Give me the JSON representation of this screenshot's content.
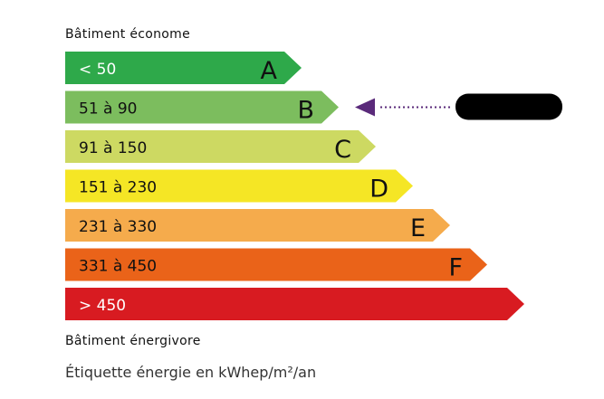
{
  "top_label": "Bâtiment économe",
  "bottom_label": "Bâtiment énergivore",
  "footer": "Étiquette énergie en kWhep/m²/an",
  "classes": [
    {
      "range": "< 50",
      "letter": "A",
      "color": "#2ea94a",
      "text_color": "#ffffff"
    },
    {
      "range": "51 à 90",
      "letter": "B",
      "color": "#7cbd5e",
      "text_color": "#111111"
    },
    {
      "range": "91 à 150",
      "letter": "C",
      "color": "#cdd962",
      "text_color": "#111111"
    },
    {
      "range": "151 à 230",
      "letter": "D",
      "color": "#f5e625",
      "text_color": "#111111"
    },
    {
      "range": "231 à 330",
      "letter": "E",
      "color": "#f5ab4c",
      "text_color": "#111111"
    },
    {
      "range": "331 à 450",
      "letter": "F",
      "color": "#ea6319",
      "text_color": "#111111"
    },
    {
      "range": "> 450",
      "letter": "",
      "color": "#d81b21",
      "text_color": "#ffffff"
    }
  ],
  "indicator": {
    "class": "B",
    "color": "#5a2a7a",
    "redacted": true
  }
}
